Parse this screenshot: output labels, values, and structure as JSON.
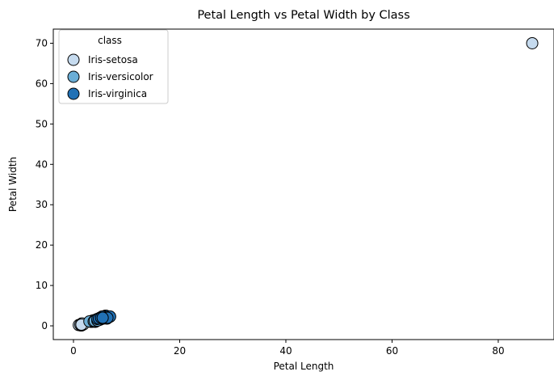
{
  "chart_data": {
    "type": "scatter",
    "title": "Petal Length vs Petal Width by Class",
    "xlabel": "Petal Length",
    "ylabel": "Petal Width",
    "xlim": [
      -3.8,
      90.5
    ],
    "ylim": [
      -3.4,
      73.5
    ],
    "x_ticks": [
      0,
      20,
      40,
      60,
      80
    ],
    "y_ticks": [
      0,
      10,
      20,
      30,
      40,
      50,
      60,
      70
    ],
    "grid": false,
    "legend": {
      "title": "class",
      "placement": "top-left"
    },
    "series": [
      {
        "name": "Iris-setosa",
        "color": "#c6dbef",
        "points": [
          [
            1.4,
            0.2
          ],
          [
            1.3,
            0.2
          ],
          [
            1.5,
            0.2
          ],
          [
            1.4,
            0.3
          ],
          [
            1.7,
            0.4
          ],
          [
            1.5,
            0.1
          ],
          [
            1.6,
            0.2
          ],
          [
            1.2,
            0.2
          ],
          [
            1.9,
            0.4
          ],
          [
            1.0,
            0.2
          ],
          [
            1.5,
            0.4
          ],
          [
            1.4,
            0.1
          ],
          [
            1.6,
            0.6
          ],
          [
            1.3,
            0.3
          ],
          [
            1.5,
            0.3
          ],
          [
            86.4,
            70.0
          ]
        ]
      },
      {
        "name": "Iris-versicolor",
        "color": "#6baed6",
        "points": [
          [
            4.7,
            1.4
          ],
          [
            4.5,
            1.5
          ],
          [
            4.9,
            1.5
          ],
          [
            4.0,
            1.3
          ],
          [
            4.6,
            1.5
          ],
          [
            3.3,
            1.0
          ],
          [
            3.9,
            1.4
          ],
          [
            3.5,
            1.0
          ],
          [
            4.2,
            1.5
          ],
          [
            3.6,
            1.3
          ],
          [
            4.4,
            1.4
          ],
          [
            4.8,
            1.8
          ],
          [
            5.0,
            1.7
          ],
          [
            4.1,
            1.0
          ],
          [
            3.0,
            1.1
          ],
          [
            5.1,
            1.6
          ],
          [
            4.3,
            1.3
          ],
          [
            3.8,
            1.1
          ],
          [
            4.0,
            1.2
          ],
          [
            4.5,
            1.3
          ]
        ]
      },
      {
        "name": "Iris-virginica",
        "color": "#2171b5",
        "points": [
          [
            6.0,
            2.5
          ],
          [
            5.1,
            1.9
          ],
          [
            5.9,
            2.1
          ],
          [
            5.6,
            1.8
          ],
          [
            5.8,
            2.2
          ],
          [
            6.6,
            2.1
          ],
          [
            4.5,
            1.7
          ],
          [
            6.3,
            1.8
          ],
          [
            6.1,
            2.5
          ],
          [
            5.3,
            1.9
          ],
          [
            5.5,
            2.1
          ],
          [
            5.0,
            2.0
          ],
          [
            6.7,
            2.2
          ],
          [
            6.9,
            2.3
          ],
          [
            5.7,
            2.3
          ],
          [
            4.9,
            1.8
          ],
          [
            5.4,
            2.3
          ],
          [
            4.8,
            1.8
          ],
          [
            5.2,
            2.0
          ],
          [
            6.4,
            2.0
          ],
          [
            5.5,
            2.0
          ]
        ]
      }
    ]
  }
}
